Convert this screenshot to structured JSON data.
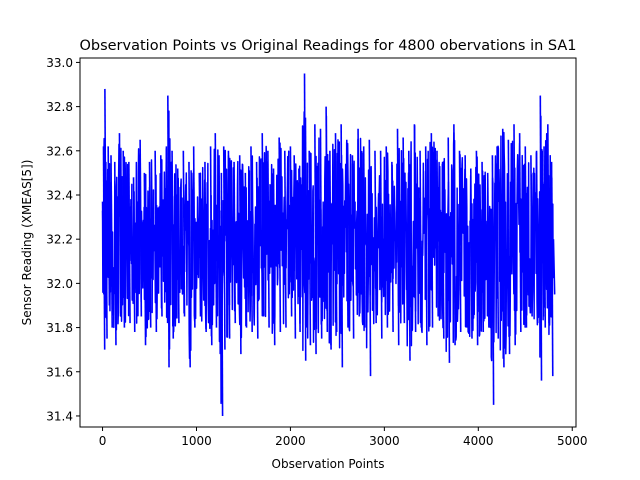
{
  "chart_data": {
    "type": "line",
    "title": "Observation Points vs Original Readings for 4800 obervations in SA1",
    "xlabel": "Observation Points",
    "ylabel": "Sensor Reading (XMEAS[5])",
    "xlim": [
      -240,
      5040
    ],
    "ylim": [
      31.35,
      33.02
    ],
    "x_ticks": [
      0,
      1000,
      2000,
      3000,
      4000,
      5000
    ],
    "y_ticks": [
      31.4,
      31.6,
      31.8,
      32.0,
      32.2,
      32.4,
      32.6,
      32.8,
      33.0
    ],
    "x_tick_labels": [
      "0",
      "1000",
      "2000",
      "3000",
      "4000",
      "5000"
    ],
    "y_tick_labels": [
      "31.4",
      "31.6",
      "31.8",
      "32.0",
      "32.2",
      "32.4",
      "32.6",
      "32.8",
      "33.0"
    ],
    "grid": false,
    "legend": "none",
    "series": [
      {
        "color": "#0000ff",
        "n_points": 4800,
        "x": [
          0,
          10,
          25,
          35,
          60,
          90,
          130,
          180,
          220,
          280,
          330,
          400,
          445,
          500,
          560,
          620,
          680,
          695,
          740,
          800,
          860,
          920,
          970,
          1030,
          1090,
          1150,
          1200,
          1240,
          1265,
          1290,
          1340,
          1400,
          1460,
          1520,
          1580,
          1640,
          1700,
          1760,
          1820,
          1880,
          1940,
          2000,
          2040,
          2090,
          2150,
          2160,
          2200,
          2260,
          2320,
          2380,
          2420,
          2480,
          2540,
          2600,
          2660,
          2720,
          2780,
          2840,
          2900,
          2960,
          3020,
          3080,
          3140,
          3200,
          3260,
          3320,
          3380,
          3440,
          3500,
          3560,
          3620,
          3680,
          3740,
          3800,
          3860,
          3920,
          3980,
          4040,
          4100,
          4150,
          4200,
          4260,
          4320,
          4380,
          4440,
          4500,
          4560,
          4620,
          4660,
          4680,
          4700,
          4740,
          4780,
          4800
        ],
        "y_max": [
          32.37,
          32.62,
          32.88,
          32.55,
          32.62,
          32.58,
          32.55,
          32.68,
          32.6,
          32.55,
          32.48,
          32.65,
          32.5,
          32.55,
          32.6,
          32.58,
          32.62,
          32.85,
          32.6,
          32.52,
          32.6,
          32.55,
          32.62,
          32.5,
          32.55,
          32.62,
          32.68,
          32.58,
          32.5,
          32.62,
          32.6,
          32.55,
          32.58,
          32.5,
          32.62,
          32.55,
          32.68,
          32.6,
          32.52,
          32.66,
          32.6,
          32.62,
          32.58,
          32.52,
          32.95,
          32.75,
          32.6,
          32.72,
          32.7,
          32.8,
          32.6,
          32.68,
          32.72,
          32.65,
          32.58,
          32.7,
          32.62,
          32.65,
          32.6,
          32.6,
          32.62,
          32.55,
          32.7,
          32.66,
          32.6,
          32.72,
          32.6,
          32.62,
          32.68,
          32.6,
          32.55,
          32.66,
          32.72,
          32.6,
          32.58,
          32.52,
          32.6,
          32.55,
          32.5,
          32.58,
          32.62,
          32.7,
          32.65,
          32.72,
          32.68,
          32.62,
          32.58,
          32.6,
          32.85,
          32.6,
          32.62,
          32.72,
          32.55,
          32.2
        ],
        "y_min": [
          31.95,
          31.7,
          31.85,
          31.75,
          31.9,
          31.8,
          31.72,
          31.85,
          31.8,
          31.82,
          31.78,
          31.85,
          31.72,
          31.8,
          31.78,
          31.85,
          31.82,
          31.62,
          31.75,
          31.82,
          31.85,
          31.62,
          31.8,
          31.85,
          31.78,
          31.72,
          31.8,
          31.68,
          31.4,
          31.7,
          31.75,
          31.82,
          31.68,
          31.8,
          31.78,
          31.75,
          31.85,
          31.8,
          31.72,
          31.78,
          31.8,
          31.85,
          31.75,
          31.78,
          31.65,
          31.8,
          31.72,
          31.68,
          31.75,
          31.78,
          31.7,
          31.78,
          31.62,
          31.8,
          31.75,
          31.85,
          31.8,
          31.58,
          31.82,
          31.75,
          31.8,
          31.78,
          31.72,
          31.82,
          31.65,
          31.78,
          31.8,
          31.72,
          31.8,
          31.85,
          31.75,
          31.64,
          31.72,
          31.78,
          31.8,
          31.75,
          31.72,
          31.78,
          31.8,
          31.45,
          31.75,
          31.62,
          31.68,
          31.72,
          31.78,
          31.8,
          31.85,
          31.82,
          31.56,
          31.85,
          31.8,
          31.82,
          31.58,
          31.95
        ]
      }
    ]
  }
}
